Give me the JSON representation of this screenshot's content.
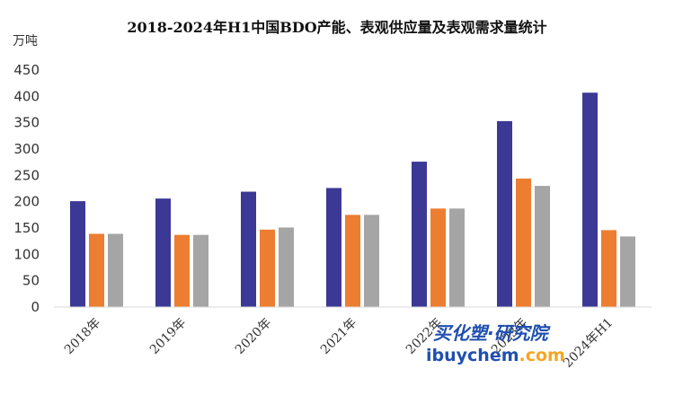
{
  "chart_data": {
    "type": "bar",
    "title": "2018-2024年H1中国BDO产能、表观供应量及表观需求量统计",
    "ylabel": "万吨",
    "categories": [
      "2018年",
      "2019年",
      "2020年",
      "2021年",
      "2022年",
      "2023年",
      "2024年H1"
    ],
    "series": [
      {
        "values": [
          201,
          206,
          219,
          226,
          276,
          353,
          407
        ],
        "color": "#3b3995"
      },
      {
        "values": [
          139,
          137,
          147,
          175,
          187,
          244,
          146
        ],
        "color": "#ed7d31"
      },
      {
        "values": [
          139,
          137,
          151,
          175,
          187,
          230,
          134
        ],
        "color": "#a5a5a5"
      }
    ],
    "ylim": [
      0,
      450
    ],
    "yticks": [
      0,
      50,
      100,
      150,
      200,
      250,
      300,
      350,
      400,
      450
    ],
    "grid": false,
    "legend": "none"
  },
  "watermark": {
    "cn": "买化塑·研究院",
    "en_a": "ibuychem",
    "en_b": ".com",
    "color_blue": "#1f4fae",
    "color_orange": "#f5a623"
  }
}
